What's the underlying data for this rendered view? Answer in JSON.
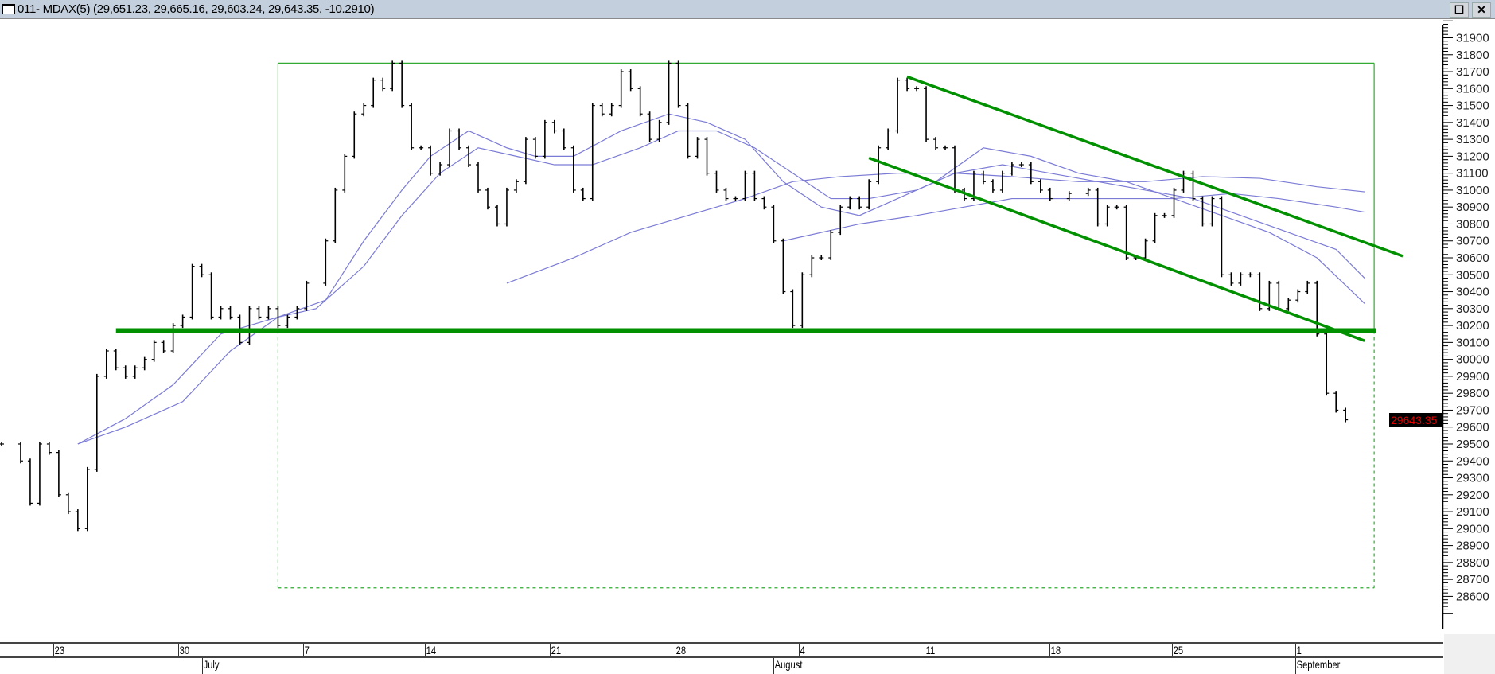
{
  "window": {
    "title": "011- MDAX(5) (29,651.23, 29,665.16, 29,603.24, 29,643.35, -10.2910)",
    "restore_label": "☐",
    "close_label": "✕"
  },
  "price_tag": "29643.35",
  "colors": {
    "bars": "#000000",
    "moving_averages": "#7b7bd6",
    "annotations": "#009000",
    "price_tag_bg": "#000000",
    "price_tag_text": "#e00000"
  },
  "chart_data": {
    "type": "bar",
    "instrument": "MDAX(5)",
    "ylim": [
      28500,
      32000
    ],
    "y_ticks": [
      31900,
      31800,
      31700,
      31600,
      31500,
      31400,
      31300,
      31200,
      31100,
      31000,
      30900,
      30800,
      30700,
      30600,
      30500,
      30400,
      30300,
      30200,
      30100,
      30000,
      29900,
      29800,
      29700,
      29600,
      29500,
      29400,
      29300,
      29200,
      29100,
      29000,
      28900,
      28800,
      28700,
      28600
    ],
    "x_tick_labels": [
      "23",
      "30",
      "7",
      "14",
      "21",
      "28",
      "4",
      "11",
      "18",
      "25",
      "1"
    ],
    "month_labels": [
      "July",
      "August",
      "September"
    ],
    "last_price": 29643.35,
    "closes": [
      [
        0,
        29500
      ],
      [
        2,
        29400
      ],
      [
        3,
        29150
      ],
      [
        4,
        29500
      ],
      [
        5,
        29450
      ],
      [
        6,
        29200
      ],
      [
        7,
        29100
      ],
      [
        8,
        29000
      ],
      [
        9,
        29350
      ],
      [
        10,
        29900
      ],
      [
        11,
        30050
      ],
      [
        12,
        29950
      ],
      [
        13,
        29900
      ],
      [
        14,
        29950
      ],
      [
        15,
        30000
      ],
      [
        16,
        30100
      ],
      [
        17,
        30050
      ],
      [
        18,
        30200
      ],
      [
        19,
        30250
      ],
      [
        20,
        30550
      ],
      [
        21,
        30500
      ],
      [
        22,
        30250
      ],
      [
        23,
        30300
      ],
      [
        24,
        30250
      ],
      [
        25,
        30100
      ],
      [
        26,
        30300
      ],
      [
        27,
        30250
      ],
      [
        28,
        30300
      ],
      [
        29,
        30200
      ],
      [
        30,
        30250
      ],
      [
        31,
        30300
      ],
      [
        32,
        30450
      ],
      [
        34,
        30700
      ],
      [
        35,
        31000
      ],
      [
        36,
        31200
      ],
      [
        37,
        31450
      ],
      [
        38,
        31500
      ],
      [
        39,
        31650
      ],
      [
        40,
        31600
      ],
      [
        41,
        31750
      ],
      [
        42,
        31500
      ],
      [
        43,
        31250
      ],
      [
        44,
        31250
      ],
      [
        45,
        31100
      ],
      [
        46,
        31150
      ],
      [
        47,
        31350
      ],
      [
        48,
        31250
      ],
      [
        49,
        31150
      ],
      [
        50,
        31000
      ],
      [
        51,
        30900
      ],
      [
        52,
        30800
      ],
      [
        53,
        31000
      ],
      [
        54,
        31050
      ],
      [
        55,
        31300
      ],
      [
        56,
        31200
      ],
      [
        57,
        31400
      ],
      [
        58,
        31350
      ],
      [
        59,
        31250
      ],
      [
        60,
        31000
      ],
      [
        61,
        30950
      ],
      [
        62,
        31500
      ],
      [
        63,
        31450
      ],
      [
        64,
        31500
      ],
      [
        65,
        31700
      ],
      [
        66,
        31600
      ],
      [
        67,
        31450
      ],
      [
        68,
        31300
      ],
      [
        69,
        31400
      ],
      [
        70,
        31750
      ],
      [
        71,
        31500
      ],
      [
        72,
        31200
      ],
      [
        73,
        31300
      ],
      [
        74,
        31100
      ],
      [
        75,
        31000
      ],
      [
        76,
        30950
      ],
      [
        77,
        30950
      ],
      [
        78,
        31100
      ],
      [
        79,
        30950
      ],
      [
        80,
        30900
      ],
      [
        81,
        30700
      ],
      [
        82,
        30400
      ],
      [
        83,
        30200
      ],
      [
        84,
        30500
      ],
      [
        85,
        30600
      ],
      [
        86,
        30600
      ],
      [
        87,
        30750
      ],
      [
        88,
        30900
      ],
      [
        89,
        30950
      ],
      [
        90,
        30900
      ],
      [
        91,
        31050
      ],
      [
        92,
        31250
      ],
      [
        93,
        31350
      ],
      [
        94,
        31650
      ],
      [
        95,
        31600
      ],
      [
        96,
        31600
      ],
      [
        97,
        31300
      ],
      [
        98,
        31250
      ],
      [
        99,
        31250
      ],
      [
        100,
        31000
      ],
      [
        101,
        30950
      ],
      [
        102,
        31100
      ],
      [
        103,
        31050
      ],
      [
        104,
        31000
      ],
      [
        105,
        31100
      ],
      [
        106,
        31150
      ],
      [
        107,
        31150
      ],
      [
        108,
        31050
      ],
      [
        109,
        31000
      ],
      [
        110,
        30950
      ],
      [
        112,
        30980
      ],
      [
        114,
        31000
      ],
      [
        115,
        30800
      ],
      [
        116,
        30900
      ],
      [
        117,
        30900
      ],
      [
        118,
        30600
      ],
      [
        119,
        30600
      ],
      [
        120,
        30700
      ],
      [
        121,
        30850
      ],
      [
        122,
        30850
      ],
      [
        123,
        31000
      ],
      [
        124,
        31100
      ],
      [
        125,
        30950
      ],
      [
        126,
        30800
      ],
      [
        127,
        30950
      ],
      [
        128,
        30500
      ],
      [
        129,
        30450
      ],
      [
        130,
        30500
      ],
      [
        131,
        30500
      ],
      [
        132,
        30300
      ],
      [
        133,
        30450
      ],
      [
        134,
        30300
      ],
      [
        135,
        30350
      ],
      [
        136,
        30400
      ],
      [
        137,
        30450
      ],
      [
        138,
        30150
      ],
      [
        139,
        29800
      ],
      [
        140,
        29700
      ],
      [
        141,
        29643
      ]
    ],
    "moving_averages": [
      [
        [
          8,
          29500
        ],
        [
          13,
          29650
        ],
        [
          18,
          29850
        ],
        [
          23,
          30150
        ],
        [
          29,
          30250
        ],
        [
          34,
          30350
        ],
        [
          38,
          30700
        ],
        [
          42,
          31000
        ],
        [
          45,
          31200
        ],
        [
          49,
          31350
        ],
        [
          53,
          31250
        ],
        [
          56,
          31200
        ],
        [
          60,
          31200
        ],
        [
          65,
          31350
        ],
        [
          70,
          31450
        ],
        [
          74,
          31400
        ],
        [
          78,
          31300
        ],
        [
          82,
          31050
        ],
        [
          86,
          30900
        ],
        [
          90,
          30850
        ],
        [
          94,
          30950
        ],
        [
          98,
          31050
        ],
        [
          103,
          31250
        ],
        [
          108,
          31200
        ],
        [
          113,
          31100
        ],
        [
          118,
          31050
        ],
        [
          123,
          30950
        ],
        [
          128,
          30850
        ],
        [
          133,
          30750
        ],
        [
          138,
          30600
        ],
        [
          143,
          30330
        ]
      ],
      [
        [
          8,
          29500
        ],
        [
          13,
          29600
        ],
        [
          19,
          29750
        ],
        [
          24,
          30050
        ],
        [
          29,
          30250
        ],
        [
          33,
          30300
        ],
        [
          38,
          30550
        ],
        [
          42,
          30850
        ],
        [
          46,
          31100
        ],
        [
          50,
          31250
        ],
        [
          54,
          31200
        ],
        [
          58,
          31150
        ],
        [
          62,
          31150
        ],
        [
          67,
          31250
        ],
        [
          71,
          31350
        ],
        [
          75,
          31350
        ],
        [
          79,
          31250
        ],
        [
          83,
          31100
        ],
        [
          87,
          30950
        ],
        [
          91,
          30950
        ],
        [
          96,
          31000
        ],
        [
          100,
          31100
        ],
        [
          105,
          31150
        ],
        [
          110,
          31100
        ],
        [
          115,
          31050
        ],
        [
          120,
          31000
        ],
        [
          125,
          30950
        ],
        [
          130,
          30850
        ],
        [
          135,
          30750
        ],
        [
          140,
          30650
        ],
        [
          143,
          30480
        ]
      ],
      [
        [
          53,
          30450
        ],
        [
          60,
          30600
        ],
        [
          66,
          30750
        ],
        [
          72,
          30850
        ],
        [
          78,
          30950
        ],
        [
          83,
          31050
        ],
        [
          88,
          31080
        ],
        [
          94,
          31100
        ],
        [
          100,
          31100
        ],
        [
          106,
          31080
        ],
        [
          113,
          31050
        ],
        [
          120,
          31050
        ],
        [
          126,
          31080
        ],
        [
          132,
          31070
        ],
        [
          138,
          31020
        ],
        [
          143,
          30990
        ]
      ],
      [
        [
          82,
          30700
        ],
        [
          90,
          30800
        ],
        [
          96,
          30850
        ],
        [
          101,
          30900
        ],
        [
          106,
          30950
        ],
        [
          112,
          30950
        ],
        [
          117,
          30950
        ],
        [
          123,
          30950
        ],
        [
          129,
          30980
        ],
        [
          134,
          30950
        ],
        [
          140,
          30900
        ],
        [
          143,
          30870
        ]
      ]
    ],
    "annotations": {
      "support_line": {
        "price": 30170,
        "from": 12,
        "to": 144
      },
      "range_box": {
        "top": 31750,
        "bottom": 28650,
        "from": 29,
        "to": 144
      },
      "channel_upper": [
        [
          95,
          31670
        ],
        [
          147,
          30610
        ]
      ],
      "channel_lower": [
        [
          91,
          31190
        ],
        [
          143,
          30110
        ]
      ]
    }
  }
}
